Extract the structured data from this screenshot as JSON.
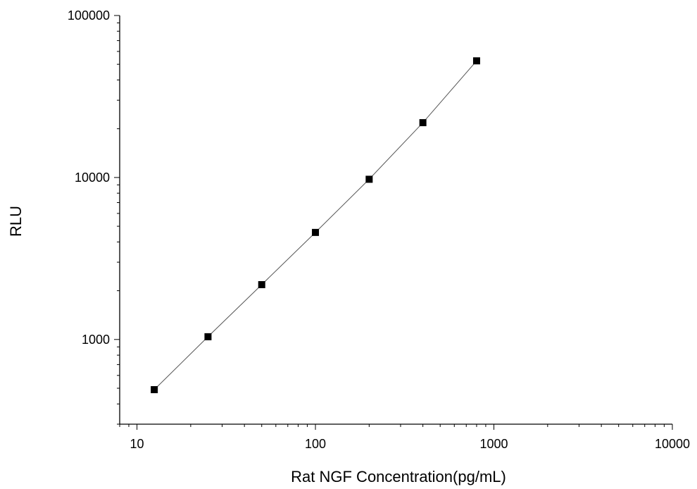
{
  "chart_data": {
    "type": "scatter",
    "title": "",
    "xlabel": "Rat NGF Concentration(pg/mL)",
    "ylabel": "RLU",
    "x_scale": "log",
    "y_scale": "log",
    "xlim": [
      8,
      10000
    ],
    "ylim": [
      300,
      100000
    ],
    "x_ticks": [
      10,
      100,
      1000,
      10000
    ],
    "x_tick_labels": [
      "10",
      "100",
      "1000",
      "10000"
    ],
    "y_ticks": [
      1000,
      10000,
      100000
    ],
    "y_tick_labels": [
      "1000",
      "10000",
      "100000"
    ],
    "grid": false,
    "legend": "none",
    "series": [
      {
        "x": [
          12.5,
          25,
          50,
          100,
          200,
          400,
          800
        ],
        "y": [
          490,
          1040,
          2180,
          4580,
          9750,
          21800,
          52500
        ],
        "marker": "square",
        "connect_line": true
      }
    ],
    "colors": {
      "marker": "#000000",
      "line": "#555555",
      "axis": "#000000"
    }
  }
}
